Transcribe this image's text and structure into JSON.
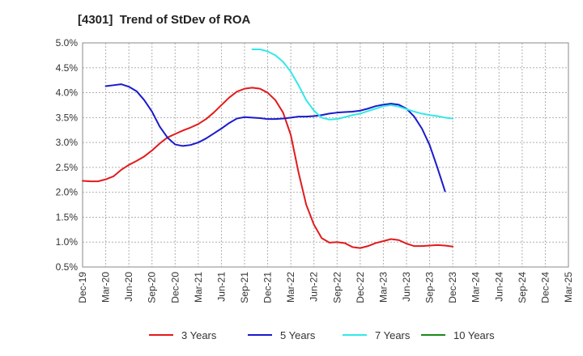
{
  "chart_data": {
    "type": "line",
    "title": "[4301]  Trend of StDev of ROA",
    "xlabel": "",
    "ylabel": "",
    "ylim": [
      0.5,
      5.0
    ],
    "yticks": [
      "0.5%",
      "1.0%",
      "1.5%",
      "2.0%",
      "2.5%",
      "3.0%",
      "3.5%",
      "4.0%",
      "4.5%",
      "5.0%"
    ],
    "x_tick_labels": [
      "Dec-19",
      "Mar-20",
      "Jun-20",
      "Sep-20",
      "Dec-20",
      "Mar-21",
      "Jun-21",
      "Sep-21",
      "Dec-21",
      "Mar-22",
      "Jun-22",
      "Sep-22",
      "Dec-22",
      "Mar-23",
      "Jun-23",
      "Sep-23",
      "Dec-23",
      "Mar-24",
      "Jun-24",
      "Sep-24",
      "Dec-24",
      "Mar-25"
    ],
    "grid": true,
    "legend_position": "bottom",
    "series": [
      {
        "name": "3 Years",
        "color": "#e31a1c",
        "points": [
          [
            0,
            2.23
          ],
          [
            1,
            2.22
          ],
          [
            2,
            2.22
          ],
          [
            3,
            2.26
          ],
          [
            4,
            2.32
          ],
          [
            5,
            2.45
          ],
          [
            6,
            2.55
          ],
          [
            7,
            2.63
          ],
          [
            8,
            2.72
          ],
          [
            9,
            2.84
          ],
          [
            10,
            2.98
          ],
          [
            11,
            3.1
          ],
          [
            12,
            3.17
          ],
          [
            13,
            3.24
          ],
          [
            14,
            3.3
          ],
          [
            15,
            3.37
          ],
          [
            16,
            3.47
          ],
          [
            17,
            3.6
          ],
          [
            18,
            3.75
          ],
          [
            19,
            3.9
          ],
          [
            20,
            4.02
          ],
          [
            21,
            4.08
          ],
          [
            22,
            4.1
          ],
          [
            23,
            4.08
          ],
          [
            24,
            4.0
          ],
          [
            25,
            3.85
          ],
          [
            26,
            3.6
          ],
          [
            27,
            3.15
          ],
          [
            28,
            2.4
          ],
          [
            29,
            1.75
          ],
          [
            30,
            1.35
          ],
          [
            31,
            1.08
          ],
          [
            32,
            0.99
          ],
          [
            33,
            1.0
          ],
          [
            34,
            0.98
          ],
          [
            35,
            0.9
          ],
          [
            36,
            0.88
          ],
          [
            37,
            0.92
          ],
          [
            38,
            0.98
          ],
          [
            39,
            1.02
          ],
          [
            40,
            1.06
          ],
          [
            41,
            1.04
          ],
          [
            42,
            0.97
          ],
          [
            43,
            0.92
          ],
          [
            44,
            0.92
          ],
          [
            45,
            0.93
          ],
          [
            46,
            0.94
          ],
          [
            47,
            0.93
          ],
          [
            48,
            0.91
          ]
        ]
      },
      {
        "name": "5 Years",
        "color": "#1a1acc",
        "points": [
          [
            3,
            4.13
          ],
          [
            4,
            4.15
          ],
          [
            5,
            4.17
          ],
          [
            6,
            4.12
          ],
          [
            7,
            4.03
          ],
          [
            8,
            3.85
          ],
          [
            9,
            3.62
          ],
          [
            10,
            3.32
          ],
          [
            11,
            3.1
          ],
          [
            12,
            2.96
          ],
          [
            13,
            2.93
          ],
          [
            14,
            2.95
          ],
          [
            15,
            3.0
          ],
          [
            16,
            3.08
          ],
          [
            17,
            3.18
          ],
          [
            18,
            3.28
          ],
          [
            19,
            3.39
          ],
          [
            20,
            3.48
          ],
          [
            21,
            3.51
          ],
          [
            22,
            3.5
          ],
          [
            23,
            3.49
          ],
          [
            24,
            3.47
          ],
          [
            25,
            3.47
          ],
          [
            26,
            3.48
          ],
          [
            27,
            3.5
          ],
          [
            28,
            3.52
          ],
          [
            29,
            3.52
          ],
          [
            30,
            3.53
          ],
          [
            31,
            3.55
          ],
          [
            32,
            3.58
          ],
          [
            33,
            3.6
          ],
          [
            34,
            3.61
          ],
          [
            35,
            3.62
          ],
          [
            36,
            3.64
          ],
          [
            37,
            3.68
          ],
          [
            38,
            3.73
          ],
          [
            39,
            3.76
          ],
          [
            40,
            3.78
          ],
          [
            41,
            3.76
          ],
          [
            42,
            3.68
          ],
          [
            43,
            3.52
          ],
          [
            44,
            3.28
          ],
          [
            45,
            2.95
          ],
          [
            46,
            2.5
          ],
          [
            47,
            2.02
          ]
        ]
      },
      {
        "name": "7 Years",
        "color": "#33e8e8",
        "points": [
          [
            22,
            4.87
          ],
          [
            23,
            4.87
          ],
          [
            24,
            4.83
          ],
          [
            25,
            4.75
          ],
          [
            26,
            4.62
          ],
          [
            27,
            4.42
          ],
          [
            28,
            4.15
          ],
          [
            29,
            3.85
          ],
          [
            30,
            3.64
          ],
          [
            31,
            3.5
          ],
          [
            32,
            3.46
          ],
          [
            33,
            3.47
          ],
          [
            34,
            3.51
          ],
          [
            35,
            3.55
          ],
          [
            36,
            3.58
          ],
          [
            37,
            3.63
          ],
          [
            38,
            3.68
          ],
          [
            39,
            3.73
          ],
          [
            40,
            3.75
          ],
          [
            41,
            3.72
          ],
          [
            42,
            3.67
          ],
          [
            43,
            3.62
          ],
          [
            44,
            3.58
          ],
          [
            45,
            3.55
          ],
          [
            46,
            3.53
          ],
          [
            47,
            3.5
          ],
          [
            48,
            3.48
          ]
        ]
      },
      {
        "name": "10 Years",
        "color": "#1a8a1a",
        "points": []
      }
    ]
  }
}
